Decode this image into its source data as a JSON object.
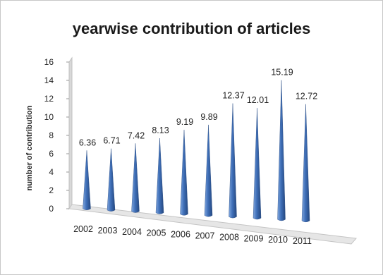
{
  "chart_data": {
    "type": "bar",
    "title": "yearwise contribution of articles",
    "ylabel": "number of contribution",
    "xlabel": "",
    "categories": [
      "2002",
      "2003",
      "2004",
      "2005",
      "2006",
      "2007",
      "2008",
      "2009",
      "2010",
      "2011"
    ],
    "values": [
      6.36,
      6.71,
      7.42,
      8.13,
      9.19,
      9.89,
      12.37,
      12.01,
      15.19,
      12.72
    ],
    "value_labels": [
      "6.36",
      "6.71",
      "7.42",
      "8.13",
      "9.19",
      "9.89",
      "12.37",
      "12.01",
      "15.19",
      "12.72"
    ],
    "yticks": [
      "0",
      "2",
      "4",
      "6",
      "8",
      "10",
      "12",
      "14",
      "16"
    ],
    "ylim": [
      0,
      16
    ],
    "bar_shape": "cone",
    "perspective": "3d",
    "gridlines": false,
    "legend": "none",
    "colors": {
      "bar": "#3f6fb8",
      "bar_light": "#7fa6de",
      "bar_dark": "#24477f",
      "wall": "#d9d9d9"
    }
  }
}
